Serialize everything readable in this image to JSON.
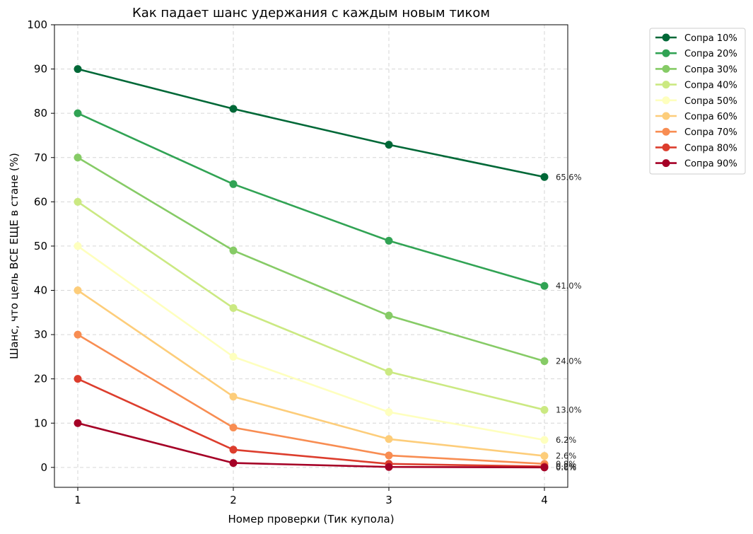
{
  "chart_data": {
    "type": "line",
    "title": "Как падает шанс удержания с каждым новым тиком",
    "xlabel": "Номер проверки (Тик купола)",
    "ylabel": "Шанс, что цель ВСЕ ЕЩЕ в стане (%)",
    "x": [
      1,
      2,
      3,
      4
    ],
    "xlim": [
      0.85,
      4.15
    ],
    "ylim": [
      -4.5,
      100
    ],
    "yticks": [
      0,
      10,
      20,
      30,
      40,
      50,
      60,
      70,
      80,
      90,
      100
    ],
    "grid": true,
    "legend_position": "outside right, top",
    "series": [
      {
        "name": "Сопра 10%",
        "color": "#006837",
        "values": [
          90,
          81,
          72.9,
          65.6
        ],
        "end_label": "65.6%"
      },
      {
        "name": "Сопра 20%",
        "color": "#31a354",
        "values": [
          80,
          64,
          51.2,
          41.0
        ],
        "end_label": "41.0%"
      },
      {
        "name": "Сопра 30%",
        "color": "#86cb66",
        "values": [
          70,
          49,
          34.3,
          24.0
        ],
        "end_label": "24.0%"
      },
      {
        "name": "Сопра 40%",
        "color": "#cbe982",
        "values": [
          60,
          36,
          21.6,
          13.0
        ],
        "end_label": "13.0%"
      },
      {
        "name": "Сопра 50%",
        "color": "#feffbe",
        "values": [
          50,
          25,
          12.5,
          6.2
        ],
        "end_label": "6.2%"
      },
      {
        "name": "Сопра 60%",
        "color": "#fdcd7a",
        "values": [
          40,
          16,
          6.4,
          2.6
        ],
        "end_label": "2.6%"
      },
      {
        "name": "Сопра 70%",
        "color": "#f88d52",
        "values": [
          30,
          9,
          2.7,
          0.8
        ],
        "end_label": "0.8%"
      },
      {
        "name": "Сопра 80%",
        "color": "#dc3d2d",
        "values": [
          20,
          4,
          0.8,
          0.2
        ],
        "end_label": "0.2%"
      },
      {
        "name": "Сопра 90%",
        "color": "#a50026",
        "values": [
          10,
          1,
          0.1,
          0.0
        ],
        "end_label": "0.0%"
      }
    ]
  }
}
